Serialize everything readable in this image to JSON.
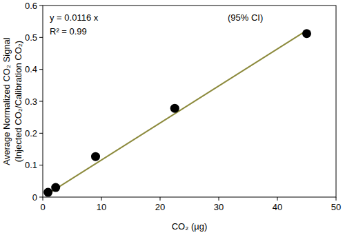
{
  "chart_data": {
    "type": "scatter",
    "xlabel": "CO₂ (µg)",
    "ylabel": [
      "Average Normalized CO₂ Signal",
      "(Injected CO₂/Calibration CO₂)"
    ],
    "annotations": [
      "y = 0.0116 x",
      "R² = 0.99",
      "(95% CI)"
    ],
    "xlim": [
      0,
      50
    ],
    "xticks": [
      0,
      10,
      20,
      30,
      40,
      50
    ],
    "ylim": [
      0,
      0.6
    ],
    "yticks": [
      0,
      0.1,
      0.2,
      0.3,
      0.4,
      0.5,
      0.6
    ],
    "grid": false,
    "series": [
      {
        "type": "scatter",
        "marker": "circle",
        "color": "#000000",
        "x": [
          0.9,
          2.2,
          9,
          22.5,
          45
        ],
        "values": [
          0.015,
          0.03,
          0.127,
          0.278,
          0.512
        ]
      },
      {
        "type": "line",
        "line_style": "solid",
        "color": "#8c8a3c",
        "x": [
          0.9,
          45
        ],
        "values": [
          0.0104,
          0.522
        ]
      }
    ]
  }
}
